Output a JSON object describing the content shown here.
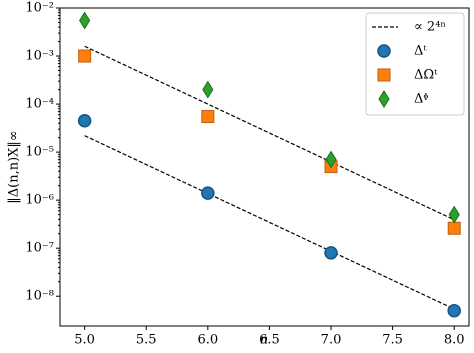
{
  "chart_data": {
    "type": "scatter",
    "xlabel": "n",
    "ylabel": "‖Δ(n,n)X‖∞",
    "xlim": [
      4.8,
      8.12
    ],
    "ylim": [
      2.4e-09,
      0.01
    ],
    "log_y": true,
    "xticks": [
      {
        "value": 5,
        "label": "5.0"
      },
      {
        "value": 5.5,
        "label": "5.5"
      },
      {
        "value": 6,
        "label": "6.0"
      },
      {
        "value": 6.5,
        "label": "6.5"
      },
      {
        "value": 7,
        "label": "7.0"
      },
      {
        "value": 7.5,
        "label": "7.5"
      },
      {
        "value": 8,
        "label": "8.0"
      }
    ],
    "yticks": [
      {
        "value": 1e-08,
        "label": "10⁻⁸"
      },
      {
        "value": 1e-07,
        "label": "10⁻⁷"
      },
      {
        "value": 1e-06,
        "label": "10⁻⁶"
      },
      {
        "value": 1e-05,
        "label": "10⁻⁵"
      },
      {
        "value": 0.0001,
        "label": "10⁻⁴"
      },
      {
        "value": 0.001,
        "label": "10⁻³"
      },
      {
        "value": 0.01,
        "label": "10⁻²"
      }
    ],
    "legend": "upper right",
    "series": [
      {
        "name": "∝ 2⁴ⁿ",
        "color": "#000000",
        "style": "dashed-line",
        "x": [
          5,
          8
        ],
        "values": [
          0.0016,
          3.9e-07
        ]
      },
      {
        "style": "dashed-line",
        "color": "#000000",
        "x": [
          5,
          8
        ],
        "values": [
          2.2e-05,
          5.4e-09
        ]
      },
      {
        "name": "Δᵗ",
        "color": "#1f77b4",
        "style": "circle",
        "x": [
          5,
          6,
          7,
          8
        ],
        "values": [
          4.5e-05,
          1.4e-06,
          8e-08,
          5e-09
        ]
      },
      {
        "name": "ΔΩᵗ",
        "color": "#ff7f0e",
        "style": "square",
        "x": [
          5,
          6,
          7,
          8
        ],
        "values": [
          0.001,
          5.5e-05,
          5e-06,
          2.6e-07
        ]
      },
      {
        "name": "Δᶲ",
        "color": "#2ca02c",
        "style": "diamond",
        "x": [
          5,
          6,
          7,
          8
        ],
        "values": [
          0.0055,
          0.0002,
          7e-06,
          5e-07
        ]
      }
    ]
  }
}
